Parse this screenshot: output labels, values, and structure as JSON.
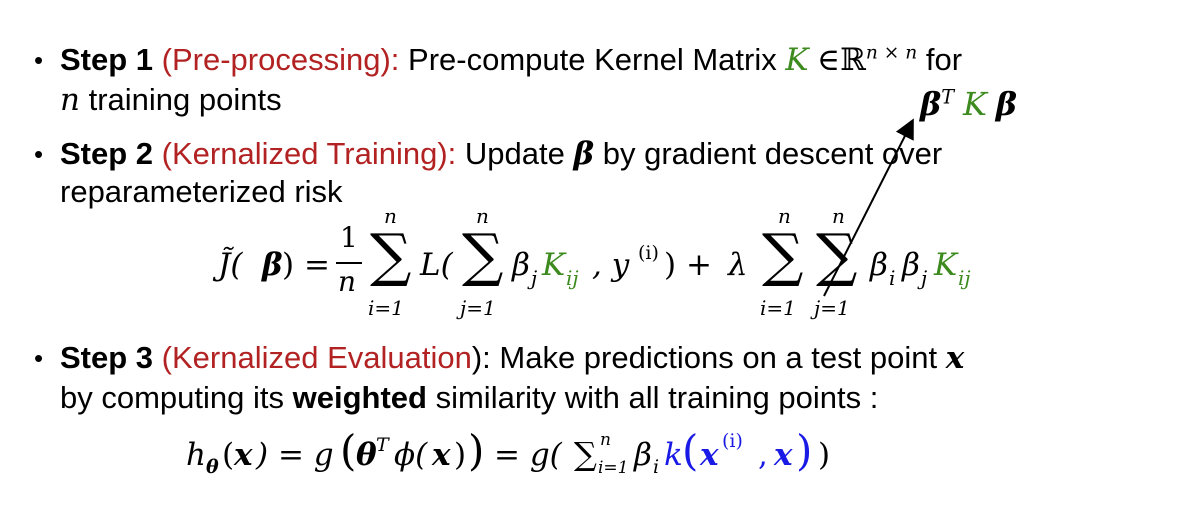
{
  "step1": {
    "label": "Step 1",
    "tag": "(Pre-processing):",
    "text_a": "Pre-compute Kernel Matrix",
    "matrix_symbol": "K",
    "element_of": "∈",
    "reals": "ℝ",
    "dims": "n × n",
    "text_b": "for",
    "n_var": "n",
    "text_c": "training points"
  },
  "annotation": {
    "beta1": "β",
    "T": "T",
    "K": "K",
    "beta2": "β"
  },
  "step2": {
    "label": "Step 2",
    "tag": "(Kernalized Training):",
    "text_a": "Update",
    "beta": "β",
    "text_b": "by gradient descent over",
    "text_c": "reparameterized risk"
  },
  "equation1": {
    "J": "J̃(",
    "beta": "β",
    "eq": ") =",
    "frac_num": "1",
    "frac_den": "n",
    "sum": "∑",
    "lim_top": "n",
    "lim_i": "i=1",
    "lim_j": "j=1",
    "L_open": "L(",
    "beta_j": "β",
    "sub_j": "j",
    "K": "K",
    "sub_ij": "ij",
    "comma_y": ", y",
    "sup_i": "(i)",
    "close_plus": ") +",
    "lambda": "λ",
    "beta_i": "β",
    "sub_i": "i"
  },
  "step3": {
    "label": "Step 3",
    "tag": "(Kernalized Evaluation",
    "tag_end": "): Make predictions on a test point",
    "x": "x",
    "text_b": "by computing its",
    "weighted": "weighted",
    "text_c": "similarity with all training points :"
  },
  "equation2": {
    "h": "h",
    "theta_sub": "θ",
    "x_open": "(",
    "x": "x",
    "close_eq_g": ") = g",
    "big_open": "(",
    "theta": "θ",
    "T": "T",
    "phi": "ϕ(",
    "x2": "x",
    "phi_close": ")",
    "big_close": ")",
    "eq_g": "= g(",
    "sum": "∑",
    "sum_sub": "i=1",
    "sum_sup": "n",
    "beta": "β",
    "beta_sub": "i",
    "k": "k",
    "k_open": "(",
    "xi": "x",
    "xi_sup": "(i)",
    "comma": ",",
    "x3": "x",
    "k_close": ")",
    "end": ")"
  }
}
